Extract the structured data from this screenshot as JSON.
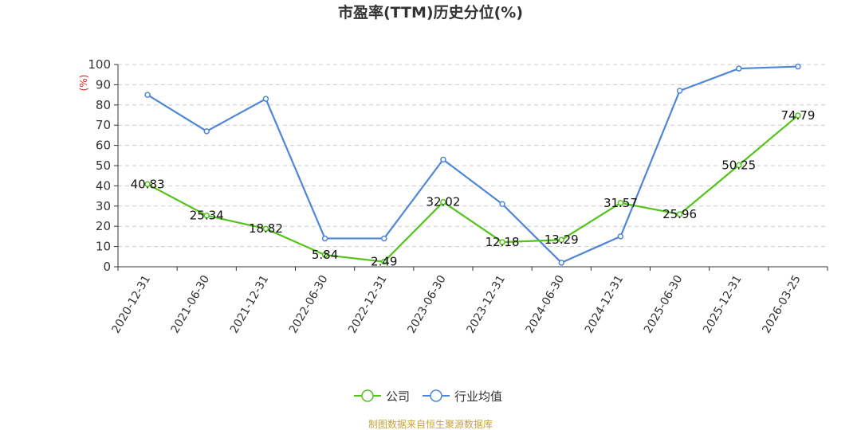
{
  "chart_data": {
    "type": "line",
    "title": "市盈率(TTM)历史分位(%)",
    "yunit": "(%)",
    "ylim": [
      0,
      100
    ],
    "yticks": [
      0,
      10,
      20,
      30,
      40,
      50,
      60,
      70,
      80,
      90,
      100
    ],
    "categories": [
      "2020-12-31",
      "2021-06-30",
      "2021-12-31",
      "2022-06-30",
      "2022-12-31",
      "2023-06-30",
      "2023-12-31",
      "2024-06-30",
      "2024-12-31",
      "2025-06-30",
      "2025-12-31",
      "2026-03-25"
    ],
    "grid": true,
    "legend_position": "bottom",
    "series": [
      {
        "name": "公司",
        "color": "#52c41a",
        "values": [
          40.83,
          25.34,
          18.82,
          5.84,
          2.49,
          32.02,
          12.18,
          13.29,
          31.57,
          25.96,
          50.25,
          74.79
        ],
        "labels": [
          "40.83",
          "25.34",
          "18.82",
          "5.84",
          "2.49",
          "32.02",
          "12.18",
          "13.29",
          "31.57",
          "25.96",
          "50.25",
          "74.79"
        ]
      },
      {
        "name": "行业均值",
        "color": "#4f86d9",
        "values": [
          85,
          67,
          83,
          14,
          14,
          53,
          31,
          2,
          15,
          87,
          98,
          99
        ]
      }
    ]
  },
  "source": "制图数据来自恒生聚源数据库"
}
